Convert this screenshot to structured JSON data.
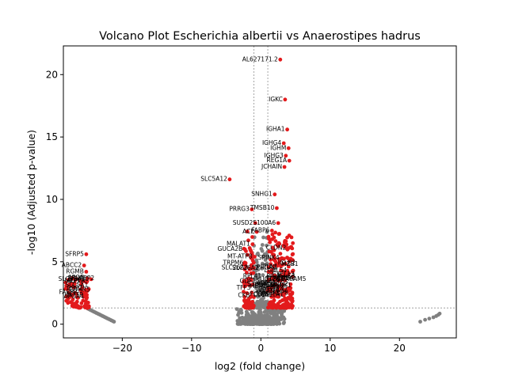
{
  "chart_data": {
    "type": "scatter",
    "title": "Volcano Plot Escherichia albertii vs Anaerostipes hadrus",
    "xlabel": "log2 (fold change)",
    "ylabel": "-log10 (Adjusted p-value)",
    "xlim": [
      -28.5,
      28.2
    ],
    "ylim": [
      -1.1,
      22.3
    ],
    "xticks": [
      -20,
      -10,
      0,
      10,
      20
    ],
    "yticks": [
      0,
      5,
      10,
      15,
      20
    ],
    "threshold_lines": {
      "x": [
        -1,
        1
      ],
      "y": 1.3
    },
    "grid": false,
    "legend": "none",
    "colors": {
      "significant": "#e31a1c",
      "not_significant": "#808080",
      "threshold": "#808080"
    },
    "labeled_points": [
      {
        "label": "AL627171.2",
        "x": 2.8,
        "y": 21.2
      },
      {
        "label": "IGKC",
        "x": 3.5,
        "y": 18.0
      },
      {
        "label": "IGHA1",
        "x": 3.8,
        "y": 15.6
      },
      {
        "label": "IGHG4",
        "x": 3.3,
        "y": 14.5
      },
      {
        "label": "IGHM",
        "x": 4.0,
        "y": 14.1
      },
      {
        "label": "IGHG3",
        "x": 3.6,
        "y": 13.5
      },
      {
        "label": "REG1A",
        "x": 4.1,
        "y": 13.1
      },
      {
        "label": "JCHAIN",
        "x": 3.4,
        "y": 12.6
      },
      {
        "label": "SLC5A12",
        "x": -4.5,
        "y": 11.6
      },
      {
        "label": "SNHG1",
        "x": 2.0,
        "y": 10.4
      },
      {
        "label": "TMSB10",
        "x": 2.3,
        "y": 9.3
      },
      {
        "label": "PRRG3",
        "x": -1.3,
        "y": 9.2
      },
      {
        "label": "SUSD2",
        "x": -0.8,
        "y": 8.1
      },
      {
        "label": "S100A6",
        "x": 2.5,
        "y": 8.1
      },
      {
        "label": "ACE",
        "x": -0.6,
        "y": 7.4
      },
      {
        "label": "FABP6",
        "x": 1.6,
        "y": 7.5
      },
      {
        "label": "MALAT1",
        "x": -1.2,
        "y": 6.4
      },
      {
        "label": "GUCA2B",
        "x": -2.3,
        "y": 6.0
      },
      {
        "label": "MT-ATP8",
        "x": -0.9,
        "y": 5.4
      },
      {
        "label": "TRPM6",
        "x": -2.2,
        "y": 4.9
      },
      {
        "label": "SPINK4",
        "x": 3.0,
        "y": 5.3
      },
      {
        "label": "SLC26A3",
        "x": -1.5,
        "y": 4.5
      },
      {
        "label": "CLDN2",
        "x": 4.0,
        "y": 6.1
      },
      {
        "label": "PIGR",
        "x": 3.2,
        "y": 3.8
      },
      {
        "label": "LCN2",
        "x": 4.3,
        "y": 3.2
      },
      {
        "label": "SFRP5",
        "x": -25.2,
        "y": 5.6
      },
      {
        "label": "ABCC2",
        "x": -25.5,
        "y": 4.7
      },
      {
        "label": "RGMB",
        "x": -25.2,
        "y": 4.2
      },
      {
        "label": "SLC22A10",
        "x": -24.5,
        "y": 3.6
      }
    ],
    "labels_near_origin": [
      "S100A11",
      "LGALS4",
      "HBA1",
      "EEF1A1",
      "RPL41",
      "TFF3",
      "MUC2",
      "KRT20",
      "CEACAM5",
      "OLFM4",
      "DMBT1",
      "CA2",
      "AQP8",
      "SLC26A2",
      "GDF15",
      "UGT2B17",
      "CES2",
      "FCGBP",
      "PHGR1",
      "MT-CO1",
      "ZG16",
      "CLCA1",
      "RPS27",
      "CKB",
      "ITLN1",
      "PLA2G2A",
      "SPINK1",
      "PRAP1"
    ],
    "labels_left_cluster": [
      "CDHR5",
      "MEP1A",
      "SLC5A1",
      "XPNPEP2",
      "MTTP",
      "APOB",
      "APOA4",
      "FABP2",
      "RBP2",
      "ALPI"
    ],
    "labels_right_lower": [
      "IGLC2",
      "IGHA2",
      "IGLC3",
      "CXCL13",
      "MZB1"
    ]
  }
}
